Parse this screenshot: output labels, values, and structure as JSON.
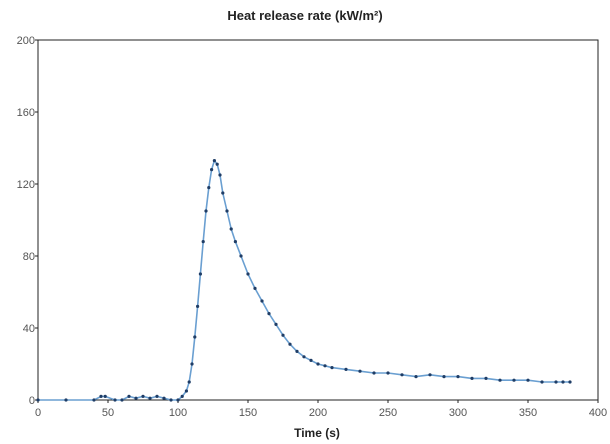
{
  "chart_data": {
    "type": "line",
    "title": "Heat release rate (kW/m²)",
    "xlabel": "Time (s)",
    "ylabel": "",
    "xlim": [
      0,
      400
    ],
    "ylim": [
      0,
      200
    ],
    "xticks": [
      "0",
      "50",
      "100",
      "150",
      "200",
      "250",
      "300",
      "350",
      "400"
    ],
    "yticks": [
      "0",
      "40",
      "80",
      "120",
      "160",
      "200"
    ],
    "grid": false,
    "legend": "none",
    "series": [
      {
        "color": "#6a9fd1",
        "marker_color": "#1f3d66",
        "x": [
          0,
          20,
          40,
          45,
          48,
          55,
          60,
          65,
          70,
          75,
          80,
          85,
          90,
          95,
          100,
          103,
          106,
          108,
          110,
          112,
          114,
          116,
          118,
          120,
          122,
          124,
          126,
          128,
          130,
          132,
          135,
          138,
          141,
          145,
          150,
          155,
          160,
          165,
          170,
          175,
          180,
          185,
          190,
          195,
          200,
          205,
          210,
          220,
          230,
          240,
          250,
          260,
          270,
          280,
          290,
          300,
          310,
          320,
          330,
          340,
          350,
          360,
          370,
          375,
          380
        ],
        "y": [
          0,
          0,
          0,
          2,
          2,
          0,
          0,
          2,
          1,
          2,
          1,
          2,
          1,
          0,
          0,
          2,
          5,
          10,
          20,
          35,
          52,
          70,
          88,
          105,
          118,
          128,
          133,
          131,
          125,
          115,
          105,
          95,
          88,
          80,
          70,
          62,
          55,
          48,
          42,
          36,
          31,
          27,
          24,
          22,
          20,
          19,
          18,
          17,
          16,
          15,
          15,
          14,
          13,
          14,
          13,
          13,
          12,
          12,
          11,
          11,
          11,
          10,
          10,
          10,
          10
        ]
      }
    ]
  }
}
